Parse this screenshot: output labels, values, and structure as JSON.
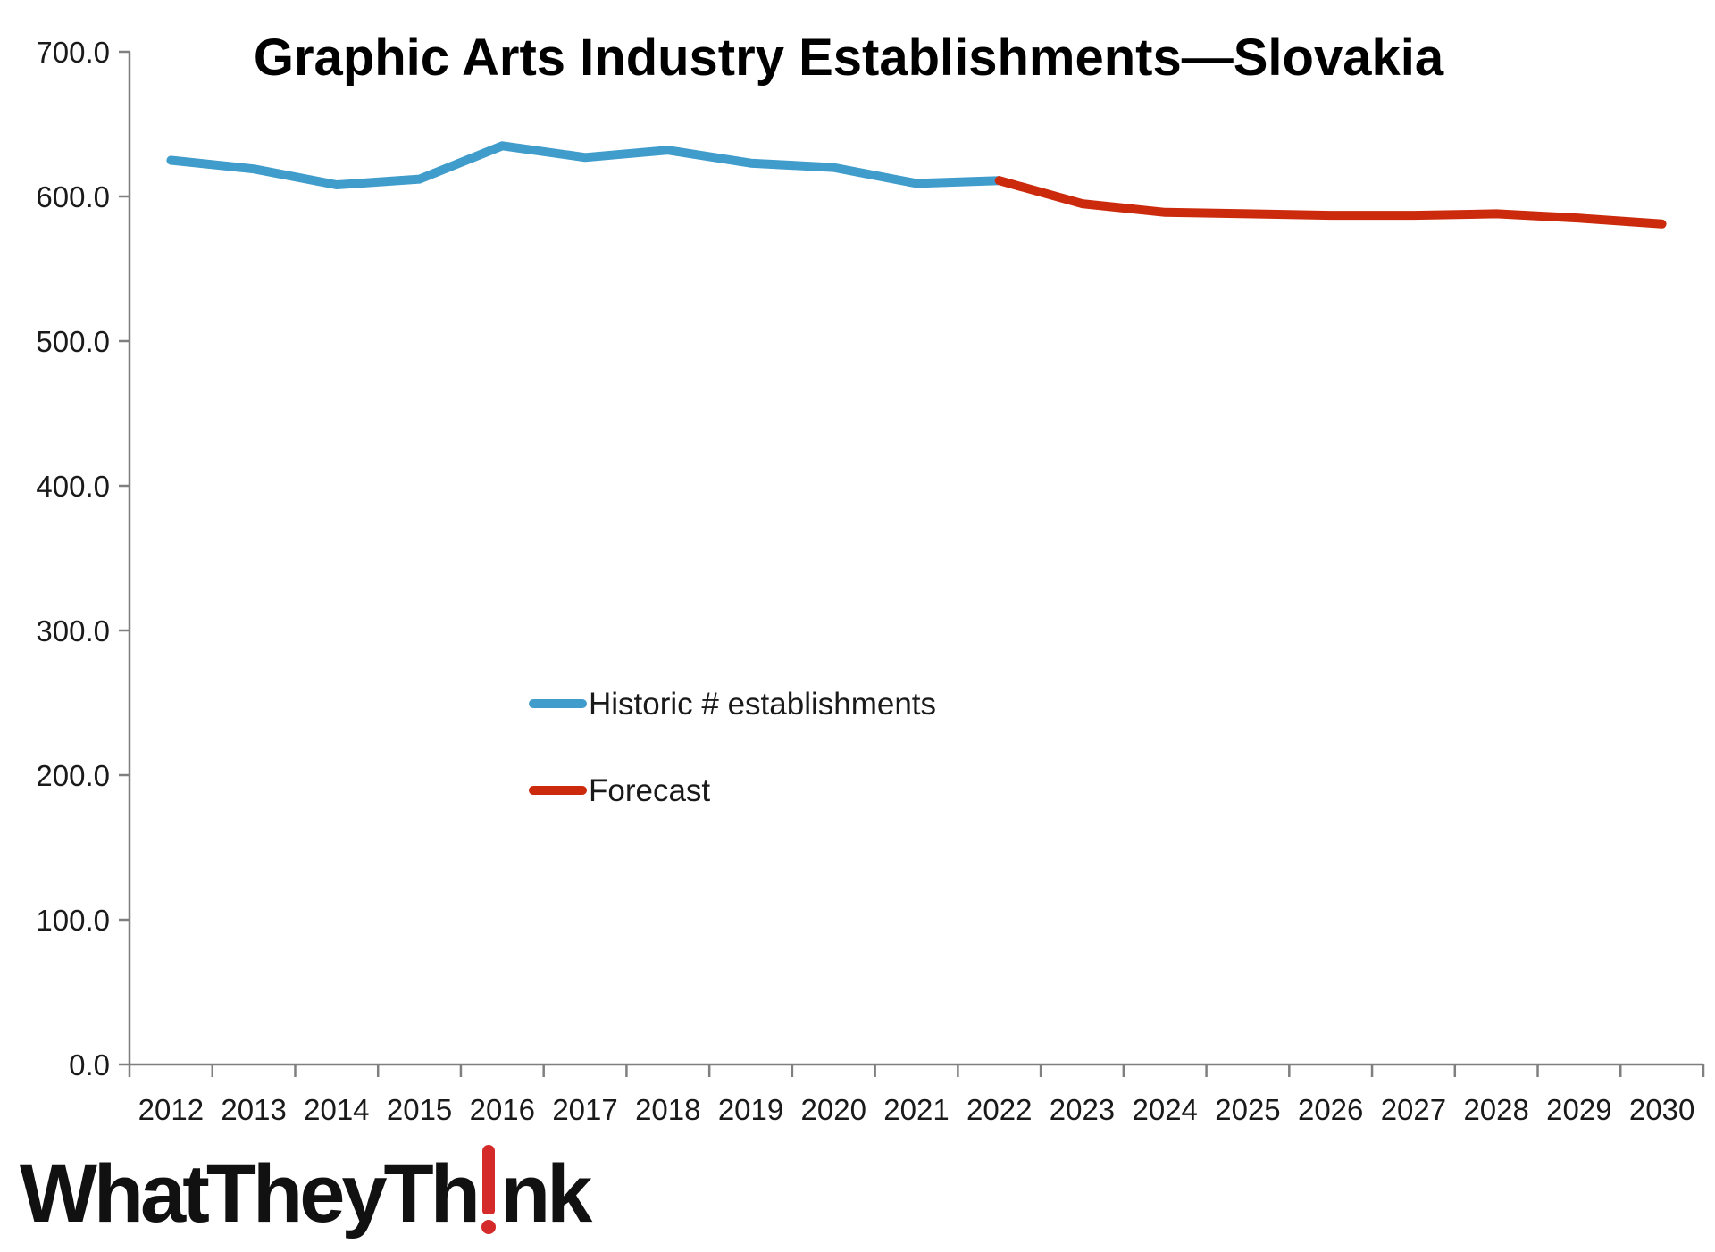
{
  "chart_data": {
    "type": "line",
    "title": "Graphic Arts Industry Establishments—Slovakia",
    "xlabel": "",
    "ylabel": "",
    "categories": [
      "2012",
      "2013",
      "2014",
      "2015",
      "2016",
      "2017",
      "2018",
      "2019",
      "2020",
      "2021",
      "2022",
      "2023",
      "2024",
      "2025",
      "2026",
      "2027",
      "2028",
      "2029",
      "2030"
    ],
    "ylim": [
      0,
      700
    ],
    "yticks": [
      "0.0",
      "100.0",
      "200.0",
      "300.0",
      "400.0",
      "500.0",
      "600.0",
      "700.0"
    ],
    "grid": false,
    "legend_position": "center-left",
    "series": [
      {
        "name": "Historic # establishments",
        "color": "#3f9ccb",
        "values": [
          625,
          619,
          608,
          612,
          635,
          627,
          632,
          623,
          620,
          609,
          611,
          null,
          null,
          null,
          null,
          null,
          null,
          null,
          null
        ]
      },
      {
        "name": "Forecast",
        "color": "#cc2a0c",
        "values": [
          null,
          null,
          null,
          null,
          null,
          null,
          null,
          null,
          null,
          null,
          611,
          595,
          589,
          588,
          587,
          587,
          588,
          585,
          581
        ]
      }
    ]
  },
  "logo": {
    "text_before": "WhatTheyTh",
    "text_after": "nk",
    "accent_color": "#d42a2a"
  }
}
